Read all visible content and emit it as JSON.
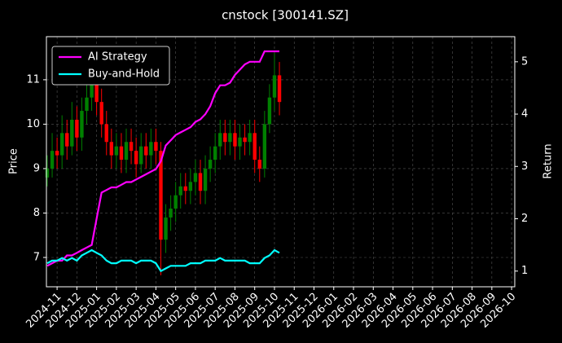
{
  "chart_data": {
    "type": "candlestick",
    "title": "cnstock [300141.SZ]",
    "ylabel": "Price",
    "y2label": "Return",
    "x": [
      -0.5,
      -0.25,
      0,
      0.25,
      0.5,
      0.75,
      1,
      1.25,
      1.5,
      1.75,
      2,
      2.25,
      2.5,
      2.75,
      3,
      3.25,
      3.5,
      3.75,
      4,
      4.25,
      4.5,
      4.75,
      5,
      5.25,
      5.5,
      5.75,
      6,
      6.25,
      6.5,
      6.75,
      7,
      7.25,
      7.5,
      7.75,
      8,
      8.25,
      8.5,
      8.75,
      9,
      9.25,
      9.5,
      9.75,
      10,
      10.25,
      10.5,
      10.75,
      11,
      11.25
    ],
    "open": [
      8.8,
      9.0,
      9.4,
      9.3,
      9.8,
      9.5,
      10.1,
      9.7,
      10.3,
      10.6,
      11.0,
      10.5,
      10.0,
      9.6,
      9.3,
      9.5,
      9.2,
      9.6,
      9.4,
      9.1,
      9.5,
      9.3,
      9.6,
      9.4,
      7.4,
      7.9,
      8.1,
      8.4,
      8.6,
      8.5,
      8.7,
      8.9,
      8.5,
      9.0,
      9.2,
      9.5,
      9.8,
      9.6,
      9.8,
      9.5,
      9.7,
      9.6,
      9.8,
      9.2,
      9.0,
      10.0,
      10.6,
      11.1
    ],
    "high": [
      9.3,
      9.8,
      9.7,
      10.2,
      10.1,
      10.5,
      10.4,
      10.6,
      10.9,
      11.3,
      11.2,
      10.8,
      10.3,
      9.9,
      9.8,
      9.8,
      9.9,
      9.9,
      9.7,
      9.8,
      9.8,
      9.9,
      9.9,
      9.6,
      8.2,
      8.4,
      8.7,
      8.9,
      8.9,
      9.0,
      9.2,
      9.2,
      9.3,
      9.5,
      9.8,
      10.1,
      10.1,
      10.1,
      10.1,
      10.0,
      10.0,
      10.1,
      10.1,
      9.5,
      10.3,
      10.9,
      11.6,
      11.4
    ],
    "low": [
      8.6,
      8.8,
      9.0,
      9.0,
      9.2,
      9.3,
      9.4,
      9.4,
      10.0,
      10.3,
      10.2,
      9.7,
      9.3,
      9.0,
      9.0,
      8.9,
      8.9,
      9.1,
      8.8,
      8.9,
      9.0,
      9.0,
      9.1,
      6.6,
      7.1,
      7.6,
      7.8,
      8.1,
      8.2,
      8.2,
      8.4,
      8.2,
      8.2,
      8.7,
      8.9,
      9.2,
      9.3,
      9.3,
      9.2,
      9.2,
      9.3,
      9.3,
      8.9,
      8.7,
      8.8,
      9.8,
      10.3,
      10.2
    ],
    "close": [
      9.0,
      9.4,
      9.3,
      9.8,
      9.5,
      10.1,
      9.7,
      10.3,
      10.6,
      11.0,
      10.5,
      10.0,
      9.6,
      9.3,
      9.5,
      9.2,
      9.6,
      9.4,
      9.1,
      9.5,
      9.3,
      9.6,
      9.4,
      7.4,
      7.9,
      8.1,
      8.4,
      8.6,
      8.5,
      8.7,
      8.9,
      8.5,
      9.0,
      9.2,
      9.5,
      9.8,
      9.6,
      9.8,
      9.5,
      9.7,
      9.6,
      9.8,
      9.2,
      9.0,
      10.0,
      10.6,
      11.1,
      10.5
    ],
    "up_color": "#008000",
    "down_color": "#ff0000",
    "series": [
      {
        "name": "AI Strategy",
        "color": "#ff00ff",
        "axis": "y2",
        "values": [
          1.1,
          1.15,
          1.2,
          1.2,
          1.3,
          1.3,
          1.35,
          1.4,
          1.45,
          1.5,
          2.0,
          2.5,
          2.55,
          2.6,
          2.6,
          2.65,
          2.7,
          2.7,
          2.75,
          2.8,
          2.85,
          2.9,
          2.95,
          3.1,
          3.4,
          3.5,
          3.6,
          3.65,
          3.7,
          3.75,
          3.85,
          3.9,
          4.0,
          4.15,
          4.4,
          4.55,
          4.55,
          4.6,
          4.75,
          4.85,
          4.95,
          5.0,
          5.0,
          5.0,
          5.2,
          5.2,
          5.2,
          5.2
        ]
      },
      {
        "name": "Buy-and-Hold",
        "color": "#00ffff",
        "axis": "y2",
        "values": [
          1.15,
          1.2,
          1.2,
          1.25,
          1.2,
          1.25,
          1.2,
          1.3,
          1.35,
          1.4,
          1.35,
          1.3,
          1.2,
          1.15,
          1.15,
          1.2,
          1.2,
          1.2,
          1.15,
          1.2,
          1.2,
          1.2,
          1.15,
          1.0,
          1.05,
          1.1,
          1.1,
          1.1,
          1.1,
          1.15,
          1.15,
          1.15,
          1.2,
          1.2,
          1.2,
          1.25,
          1.2,
          1.2,
          1.2,
          1.2,
          1.2,
          1.15,
          1.15,
          1.15,
          1.25,
          1.3,
          1.4,
          1.35
        ]
      }
    ],
    "xlim": [
      -0.54,
      23.16
    ],
    "xticks": [
      {
        "value": 0,
        "label": "2024-11"
      },
      {
        "value": 1,
        "label": "2024-12"
      },
      {
        "value": 2,
        "label": "2025-01"
      },
      {
        "value": 3,
        "label": "2025-02"
      },
      {
        "value": 4,
        "label": "2025-03"
      },
      {
        "value": 5,
        "label": "2025-04"
      },
      {
        "value": 6,
        "label": "2025-05"
      },
      {
        "value": 7,
        "label": "2025-06"
      },
      {
        "value": 8,
        "label": "2025-07"
      },
      {
        "value": 9,
        "label": "2025-08"
      },
      {
        "value": 10,
        "label": "2025-09"
      },
      {
        "value": 11,
        "label": "2025-10"
      },
      {
        "value": 12,
        "label": "2025-11"
      },
      {
        "value": 13,
        "label": "2025-12"
      },
      {
        "value": 14,
        "label": "2026-01"
      },
      {
        "value": 15,
        "label": "2026-02"
      },
      {
        "value": 16,
        "label": "2026-03"
      },
      {
        "value": 17,
        "label": "2026-04"
      },
      {
        "value": 18,
        "label": "2026-05"
      },
      {
        "value": 19,
        "label": "2026-06"
      },
      {
        "value": 20,
        "label": "2026-07"
      },
      {
        "value": 21,
        "label": "2026-08"
      },
      {
        "value": 22,
        "label": "2026-09"
      },
      {
        "value": 23,
        "label": "2026-10"
      }
    ],
    "ylim": [
      6.34,
      11.97
    ],
    "yticks": [
      7,
      8,
      9,
      10,
      11
    ],
    "y2lim": [
      0.7,
      5.48
    ],
    "y2ticks": [
      1,
      2,
      3,
      4,
      5
    ],
    "grid": true,
    "legend": "upper left"
  }
}
